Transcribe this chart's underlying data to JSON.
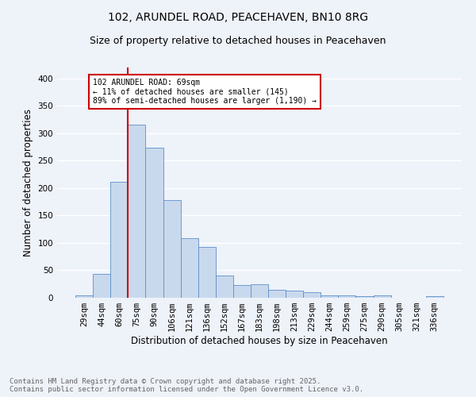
{
  "title_line1": "102, ARUNDEL ROAD, PEACEHAVEN, BN10 8RG",
  "title_line2": "Size of property relative to detached houses in Peacehaven",
  "xlabel": "Distribution of detached houses by size in Peacehaven",
  "ylabel": "Number of detached properties",
  "bar_color": "#c9d9ed",
  "bar_edge_color": "#5b8fc9",
  "bins": [
    "29sqm",
    "44sqm",
    "60sqm",
    "75sqm",
    "90sqm",
    "106sqm",
    "121sqm",
    "136sqm",
    "152sqm",
    "167sqm",
    "183sqm",
    "198sqm",
    "213sqm",
    "229sqm",
    "244sqm",
    "259sqm",
    "275sqm",
    "290sqm",
    "305sqm",
    "321sqm",
    "336sqm"
  ],
  "values": [
    4,
    44,
    211,
    315,
    273,
    178,
    108,
    93,
    40,
    23,
    25,
    14,
    13,
    10,
    4,
    5,
    3,
    4,
    0,
    0,
    3
  ],
  "ylim": [
    0,
    420
  ],
  "yticks": [
    0,
    50,
    100,
    150,
    200,
    250,
    300,
    350,
    400
  ],
  "annotation_text": "102 ARUNDEL ROAD: 69sqm\n← 11% of detached houses are smaller (145)\n89% of semi-detached houses are larger (1,190) →",
  "annotation_box_color": "#ffffff",
  "annotation_box_edge": "#cc0000",
  "vline_color": "#cc0000",
  "footer_line1": "Contains HM Land Registry data © Crown copyright and database right 2025.",
  "footer_line2": "Contains public sector information licensed under the Open Government Licence v3.0.",
  "background_color": "#eef2f9",
  "grid_color": "#ffffff",
  "title_fontsize": 10,
  "subtitle_fontsize": 9,
  "axis_label_fontsize": 8.5,
  "tick_fontsize": 7.5,
  "footer_fontsize": 6.5
}
